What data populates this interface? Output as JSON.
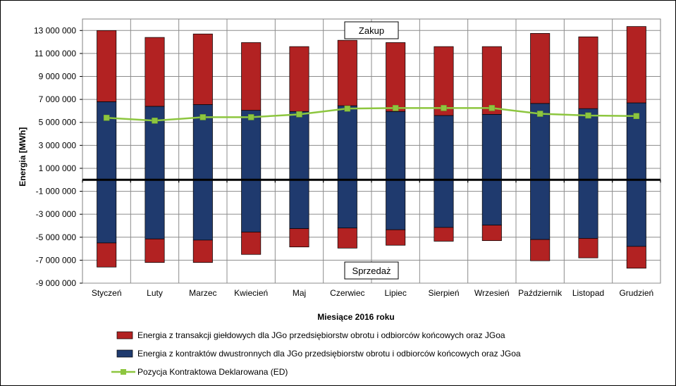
{
  "chart_data": {
    "type": "bar",
    "stacked": true,
    "categories": [
      "Styczeń",
      "Luty",
      "Marzec",
      "Kwiecień",
      "Maj",
      "Czerwiec",
      "Lipiec",
      "Sierpień",
      "Wrzesień",
      "Październik",
      "Listopad",
      "Grudzień"
    ],
    "series": [
      {
        "name": "Energia z kontraktów dwustronnych dla JGo przedsiębiorstw obrotu i odbiorców końcowych oraz JGoa",
        "color": "#1f3a6e",
        "kind": "bar",
        "positive": [
          6800000,
          6400000,
          6550000,
          6050000,
          5950000,
          6450000,
          5950000,
          5600000,
          5700000,
          6650000,
          6200000,
          6700000
        ],
        "negative": [
          -5500000,
          -5150000,
          -5250000,
          -4550000,
          -4250000,
          -4200000,
          -4350000,
          -4150000,
          -3950000,
          -5200000,
          -5100000,
          -5800000
        ]
      },
      {
        "name": "Energia z transakcji giełdowych dla JGo przedsiębiorstw obrotu i odbiorców końcowych oraz JGoa",
        "color": "#b22222",
        "kind": "bar",
        "positive": [
          6200000,
          6000000,
          6150000,
          5900000,
          5650000,
          5700000,
          6000000,
          6000000,
          5900000,
          6100000,
          6250000,
          6650000
        ],
        "negative": [
          -2100000,
          -2050000,
          -1950000,
          -1950000,
          -1600000,
          -1750000,
          -1350000,
          -1200000,
          -1350000,
          -1850000,
          -1700000,
          -1900000
        ]
      },
      {
        "name": "Pozycja Kontraktowa Deklarowana (ED)",
        "color": "#8dc63f",
        "kind": "line",
        "values": [
          5400000,
          5150000,
          5450000,
          5450000,
          5700000,
          6200000,
          6250000,
          6250000,
          6250000,
          5750000,
          5600000,
          5550000
        ]
      }
    ],
    "legend_order": [
      1,
      0,
      2
    ],
    "xlabel": "Miesiące 2016  roku",
    "ylabel": "Energia [MWh]",
    "ylim": [
      -9000000,
      14000000
    ],
    "yticks": [
      13000000,
      11000000,
      9000000,
      7000000,
      5000000,
      3000000,
      1000000,
      -1000000,
      -3000000,
      -5000000,
      -7000000,
      -9000000
    ],
    "ytick_labels": [
      "13 000 000",
      "11 000 000",
      "9 000 000",
      "7 000 000",
      "5 000 000",
      "3 000 000",
      "1 000 000",
      "-1 000 000",
      "-3 000 000",
      "-5 000 000",
      "-7 000 000",
      "-9 000 000"
    ],
    "grid": true,
    "legend_position": "bottom",
    "annotations": [
      {
        "text": "Zakup",
        "position": "top-center"
      },
      {
        "text": "Sprzedaż",
        "position": "bottom-center"
      }
    ]
  }
}
